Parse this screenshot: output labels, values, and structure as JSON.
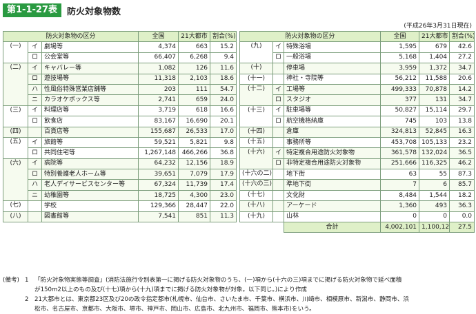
{
  "title": {
    "badge": "第1-1-27表",
    "text": "防火対象物数"
  },
  "as_of": "(平成26年3月31日現在)",
  "headers": {
    "category": "防火対象物の区分",
    "total": "全国",
    "cities": "21大都市",
    "ratio": "割合(%)"
  },
  "left_rows": [
    {
      "g": "(一)",
      "s": "イ",
      "name": "劇場等",
      "total": "4,374",
      "city": "663",
      "pct": "15.2"
    },
    {
      "g": "",
      "s": "ロ",
      "name": "公会堂等",
      "total": "66,407",
      "city": "6,268",
      "pct": "9.4"
    },
    {
      "g": "(二)",
      "s": "イ",
      "name": "キャバレー等",
      "total": "1,082",
      "city": "126",
      "pct": "11.6"
    },
    {
      "g": "",
      "s": "ロ",
      "name": "遊技場等",
      "total": "11,318",
      "city": "2,103",
      "pct": "18.6"
    },
    {
      "g": "",
      "s": "ハ",
      "name": "性風俗特殊営業店舗等",
      "total": "203",
      "city": "111",
      "pct": "54.7"
    },
    {
      "g": "",
      "s": "ニ",
      "name": "カラオケボックス等",
      "total": "2,741",
      "city": "659",
      "pct": "24.0"
    },
    {
      "g": "(三)",
      "s": "イ",
      "name": "料理店等",
      "total": "3,719",
      "city": "618",
      "pct": "16.6"
    },
    {
      "g": "",
      "s": "ロ",
      "name": "飲食店",
      "total": "83,167",
      "city": "16,690",
      "pct": "20.1"
    },
    {
      "g": "(四)",
      "s": "",
      "name": "百貨店等",
      "total": "155,687",
      "city": "26,533",
      "pct": "17.0"
    },
    {
      "g": "(五)",
      "s": "イ",
      "name": "旅館等",
      "total": "59,521",
      "city": "5,821",
      "pct": "9.8"
    },
    {
      "g": "",
      "s": "ロ",
      "name": "共同住宅等",
      "total": "1,267,148",
      "city": "466,266",
      "pct": "36.8"
    },
    {
      "g": "(六)",
      "s": "イ",
      "name": "病院等",
      "total": "64,232",
      "city": "12,156",
      "pct": "18.9"
    },
    {
      "g": "",
      "s": "ロ",
      "name": "特別養護老人ホーム等",
      "total": "39,651",
      "city": "7,079",
      "pct": "17.9"
    },
    {
      "g": "",
      "s": "ハ",
      "name": "老人デイサービスセンター等",
      "total": "67,324",
      "city": "11,739",
      "pct": "17.4"
    },
    {
      "g": "",
      "s": "ニ",
      "name": "幼稚園等",
      "total": "18,725",
      "city": "4,300",
      "pct": "23.0"
    },
    {
      "g": "(七)",
      "s": "",
      "name": "学校",
      "total": "129,366",
      "city": "28,447",
      "pct": "22.0"
    },
    {
      "g": "(八)",
      "s": "",
      "name": "図書館等",
      "total": "7,541",
      "city": "851",
      "pct": "11.3"
    }
  ],
  "right_rows": [
    {
      "g": "(九)",
      "s": "イ",
      "name": "特殊浴場",
      "total": "1,595",
      "city": "679",
      "pct": "42.6"
    },
    {
      "g": "",
      "s": "ロ",
      "name": "一般浴場",
      "total": "5,168",
      "city": "1,404",
      "pct": "27.2"
    },
    {
      "g": "(十)",
      "s": "",
      "name": "停車場",
      "total": "3,959",
      "city": "1,372",
      "pct": "34.7"
    },
    {
      "g": "(十一)",
      "s": "",
      "name": "神社・寺院等",
      "total": "56,212",
      "city": "11,588",
      "pct": "20.6"
    },
    {
      "g": "(十二)",
      "s": "イ",
      "name": "工場等",
      "total": "499,333",
      "city": "70,878",
      "pct": "14.2"
    },
    {
      "g": "",
      "s": "ロ",
      "name": "スタジオ",
      "total": "377",
      "city": "131",
      "pct": "34.7"
    },
    {
      "g": "(十三)",
      "s": "イ",
      "name": "駐車場等",
      "total": "50,827",
      "city": "15,114",
      "pct": "29.7"
    },
    {
      "g": "",
      "s": "ロ",
      "name": "航空機格納庫",
      "total": "745",
      "city": "103",
      "pct": "13.8"
    },
    {
      "g": "(十四)",
      "s": "",
      "name": "倉庫",
      "total": "324,813",
      "city": "52,845",
      "pct": "16.3"
    },
    {
      "g": "(十五)",
      "s": "",
      "name": "事務所等",
      "total": "453,708",
      "city": "105,133",
      "pct": "23.2"
    },
    {
      "g": "(十六)",
      "s": "イ",
      "name": "特定複合用途防火対象物",
      "total": "361,578",
      "city": "132,024",
      "pct": "36.5"
    },
    {
      "g": "",
      "s": "ロ",
      "name": "非特定複合用途防火対象物",
      "total": "251,666",
      "city": "116,325",
      "pct": "46.2"
    },
    {
      "g": "(十六の二)",
      "s": "",
      "name": "地下街",
      "total": "63",
      "city": "55",
      "pct": "87.3"
    },
    {
      "g": "(十六の三)",
      "s": "",
      "name": "準地下街",
      "total": "7",
      "city": "6",
      "pct": "85.7"
    },
    {
      "g": "(十七)",
      "s": "",
      "name": "文化財",
      "total": "8,484",
      "city": "1,544",
      "pred": "",
      "pct": "18.2"
    },
    {
      "g": "(十八)",
      "s": "",
      "name": "アーケード",
      "total": "1,360",
      "city": "493",
      "pct": "36.3"
    },
    {
      "g": "(十九)",
      "s": "",
      "name": "山林",
      "total": "0",
      "city": "0",
      "pct": "0.0"
    }
  ],
  "total_row": {
    "label": "合計",
    "total": "4,002,101",
    "city": "1,100,124",
    "pct": "27.5"
  },
  "remarks": {
    "label": "(備考)",
    "items": [
      {
        "num": "1",
        "lines": [
          "「防火対象物実態等調査」(消防法施行令別表第一に掲げる防火対象物のうち、(一)項から(十六の三)項までに掲げる防火対象物で延べ面積",
          "が150m2以上のもの及び(十七)項から(十九)項までに掲げる防火対象物が対象。以下同じ。)により作成"
        ]
      },
      {
        "num": "2",
        "lines": [
          "21大都市とは、東京都23区及び20の政令指定都市(札幌市、仙台市、さいたま市、千葉市、横浜市、川崎市、相模原市、新潟市、静岡市、浜",
          "松市、名古屋市、京都市、大阪市、堺市、神戸市、岡山市、広島市、北九州市、福岡市、熊本市)をいう。"
        ]
      }
    ]
  },
  "colors": {
    "badge_bg": "#2a9a41",
    "header_bg": "#dff0c8",
    "border": "#7a9c7a"
  }
}
